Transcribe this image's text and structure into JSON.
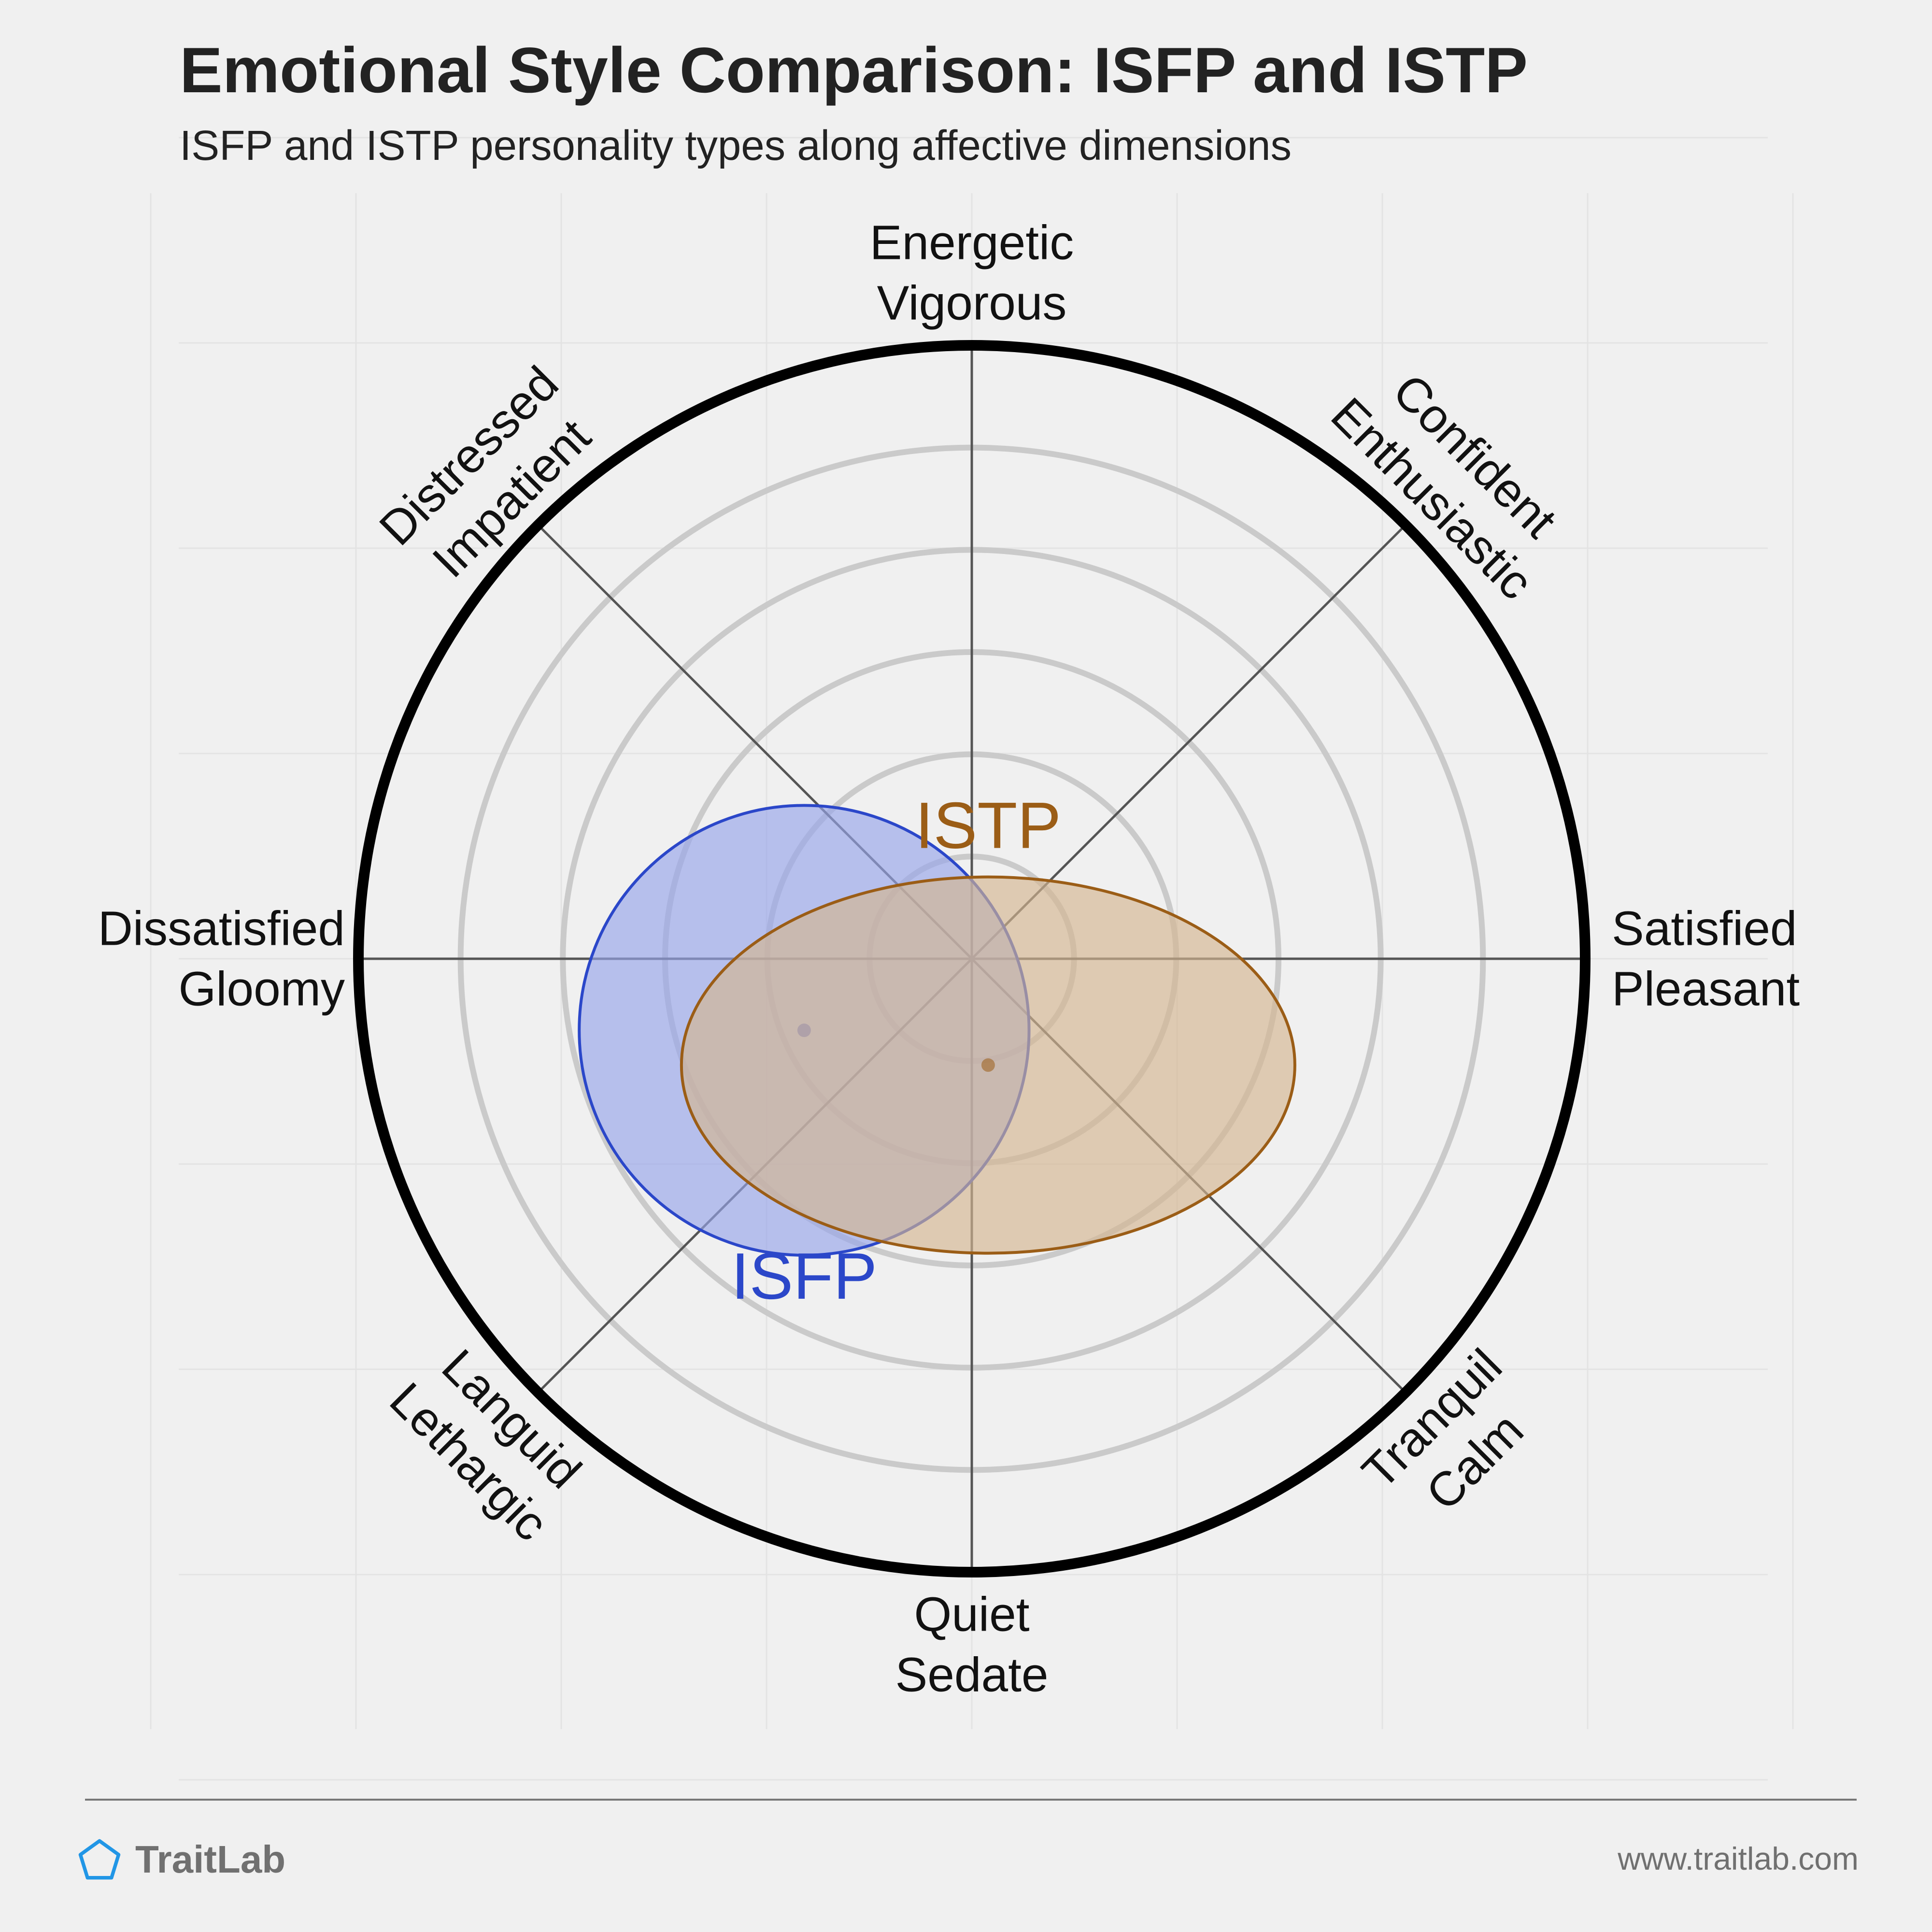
{
  "header": {
    "title": "Emotional Style Comparison: ISFP and ISTP",
    "subtitle": "ISFP and ISTP personality types along affective dimensions"
  },
  "footer": {
    "brand": "TraitLab",
    "url": "www.traitlab.com",
    "brand_icon": "pentagon-icon"
  },
  "chart_data": {
    "type": "scatter",
    "rings": 6,
    "grid": true,
    "range": [
      -3,
      3
    ],
    "axes": [
      {
        "angle": 90,
        "lines": [
          "Energetic",
          "Vigorous"
        ]
      },
      {
        "angle": 45,
        "lines": [
          "Confident",
          "Enthusiastic"
        ]
      },
      {
        "angle": 0,
        "lines": [
          "Satisfied",
          "Pleasant"
        ]
      },
      {
        "angle": -45,
        "lines": [
          "Tranquil",
          "Calm"
        ]
      },
      {
        "angle": -90,
        "lines": [
          "Quiet",
          "Sedate"
        ]
      },
      {
        "angle": -135,
        "lines": [
          "Languid",
          "Lethargic"
        ]
      },
      {
        "angle": 180,
        "lines": [
          "Dissatisfied",
          "Gloomy"
        ]
      },
      {
        "angle": 135,
        "lines": [
          "Distressed",
          "Impatient"
        ]
      }
    ],
    "series": [
      {
        "name": "ISFP",
        "center": [
          -0.82,
          -0.35
        ],
        "radius": [
          1.1,
          1.1
        ],
        "color": "#2b47c9",
        "fill": "#97a4ea"
      },
      {
        "name": "ISTP",
        "center": [
          0.08,
          -0.52
        ],
        "radius": [
          1.5,
          0.92
        ],
        "color": "#9b5d16",
        "fill": "#d4b690"
      }
    ]
  }
}
